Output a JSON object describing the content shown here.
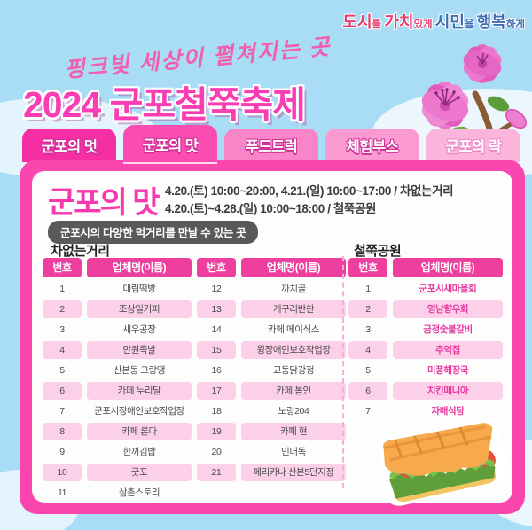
{
  "slogan": {
    "segments": [
      {
        "text": "도시",
        "bold": true,
        "color": "red"
      },
      {
        "text": "를 ",
        "bold": false,
        "color": "red"
      },
      {
        "text": "가치",
        "bold": true,
        "color": "red"
      },
      {
        "text": "있게 ",
        "bold": false,
        "color": "red"
      },
      {
        "text": "시민",
        "bold": true,
        "color": "blue"
      },
      {
        "text": "을 ",
        "bold": false,
        "color": "blue"
      },
      {
        "text": "행복",
        "bold": true,
        "color": "blue"
      },
      {
        "text": "하게",
        "bold": false,
        "color": "blue"
      }
    ]
  },
  "header": {
    "tagline": "핑크빛 세상이 펼쳐지는 곳",
    "title": "2024 군포철쭉축제"
  },
  "tabs": [
    {
      "label": "군포의 멋",
      "active": false
    },
    {
      "label": "군포의 맛",
      "active": true
    },
    {
      "label": "푸드트럭",
      "active": false
    },
    {
      "label": "체험부스",
      "active": false
    },
    {
      "label": "군포의 락",
      "active": false
    }
  ],
  "content": {
    "section_title": "군포의 맛",
    "schedule_line1": "4.20.(토) 10:00~20:00, 4.21.(일) 10:00~17:00 / 차없는거리",
    "schedule_line2": "4.20.(토)~4.28.(일) 10:00~18:00 / 철쭉공원",
    "subtitle": "군포시의 다양한 먹거리를 만날 수 있는 곳",
    "columns": {
      "no": "번호",
      "name": "업체명(이름)"
    },
    "section_marker": "▼",
    "car_free_street": {
      "title": "차없는거리",
      "vendors": [
        {
          "no": "1",
          "name": "대림떡방"
        },
        {
          "no": "2",
          "name": "조상일커피"
        },
        {
          "no": "3",
          "name": "새우공장"
        },
        {
          "no": "4",
          "name": "만원족발"
        },
        {
          "no": "5",
          "name": "산본동 그랑땡"
        },
        {
          "no": "6",
          "name": "카페 누리달"
        },
        {
          "no": "7",
          "name": "군포시장애인보호작업장"
        },
        {
          "no": "8",
          "name": "카페 론다"
        },
        {
          "no": "9",
          "name": "한끼김밥"
        },
        {
          "no": "10",
          "name": "굿포"
        },
        {
          "no": "11",
          "name": "삼촌스토리"
        },
        {
          "no": "12",
          "name": "까치골"
        },
        {
          "no": "13",
          "name": "개구리반찬"
        },
        {
          "no": "14",
          "name": "카페 메이식스"
        },
        {
          "no": "15",
          "name": "윙장애인보호작업장"
        },
        {
          "no": "16",
          "name": "교동닭강정"
        },
        {
          "no": "17",
          "name": "카페 봄인"
        },
        {
          "no": "18",
          "name": "노랑204"
        },
        {
          "no": "19",
          "name": "카페 현"
        },
        {
          "no": "20",
          "name": "인더독"
        },
        {
          "no": "21",
          "name": "페리카나 산본5단지점"
        }
      ]
    },
    "azalea_park": {
      "title": "철쭉공원",
      "vendors": [
        {
          "no": "1",
          "name": "군포시새마을회"
        },
        {
          "no": "2",
          "name": "영남향우회"
        },
        {
          "no": "3",
          "name": "금정숯불갈비"
        },
        {
          "no": "4",
          "name": "추억집"
        },
        {
          "no": "5",
          "name": "미풍해장국"
        },
        {
          "no": "6",
          "name": "치킨매니아"
        },
        {
          "no": "7",
          "name": "자매식당"
        }
      ]
    }
  },
  "illustrations": {
    "flower": "azalea-flower",
    "sandwich": "sandwich"
  },
  "colors": {
    "sky": "#a9ddf6",
    "accent_magenta": "#fa3db3",
    "panel": "#fa46ad",
    "table_header": "#ef3f9e",
    "row_pink": "#fcd0e9",
    "accent_name": "#e5399e",
    "slogan_red": "#e83b6e",
    "slogan_blue": "#3e6db5",
    "pill_bg": "#58595b"
  }
}
